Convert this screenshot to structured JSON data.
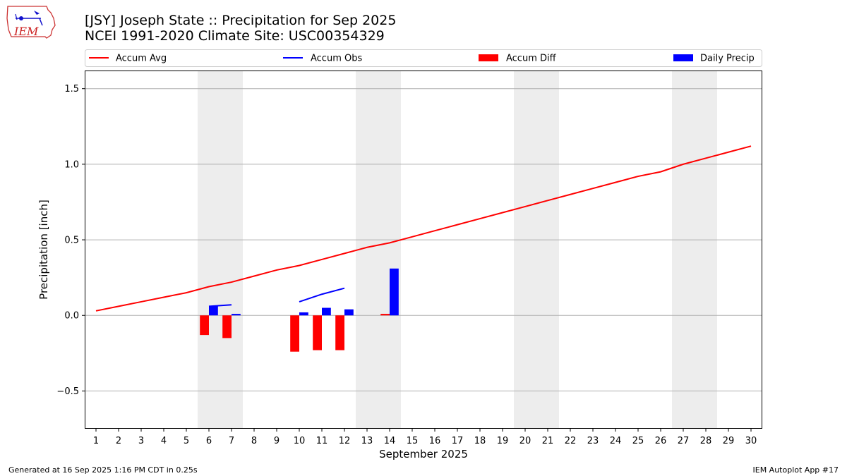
{
  "title_line1": "[JSY] Joseph State :: Precipitation for Sep 2025",
  "title_line2": "NCEI 1991-2020 Climate Site: USC00354329",
  "logo_text": "IEM",
  "footer_left": "Generated at 16 Sep 2025 1:16 PM CDT in 0.25s",
  "footer_right": "IEM Autoplot App #17",
  "colors": {
    "avg": "#ff0000",
    "obs": "#0000ff",
    "diff": "#ff0000",
    "daily": "#0000ff",
    "weekend": "#ededed"
  },
  "chart_data": {
    "type": "bar",
    "xlabel": "September 2025",
    "ylabel": "Precipitation [inch]",
    "xlim": [
      0.5,
      30.5
    ],
    "ylim": [
      -0.75,
      1.62
    ],
    "yticks": [
      -0.5,
      0.0,
      0.5,
      1.0,
      1.5
    ],
    "ytick_labels": [
      "−0.5",
      "0.0",
      "0.5",
      "1.0",
      "1.5"
    ],
    "xticks": [
      1,
      2,
      3,
      4,
      5,
      6,
      7,
      8,
      9,
      10,
      11,
      12,
      13,
      14,
      15,
      16,
      17,
      18,
      19,
      20,
      21,
      22,
      23,
      24,
      25,
      26,
      27,
      28,
      29,
      30
    ],
    "xtick_labels": [
      "1",
      "2",
      "3",
      "4",
      "5",
      "6",
      "7",
      "8",
      "9",
      "10",
      "11",
      "12",
      "13",
      "14",
      "15",
      "16",
      "17",
      "18",
      "19",
      "20",
      "21",
      "22",
      "23",
      "24",
      "25",
      "26",
      "27",
      "28",
      "29",
      "30"
    ],
    "grid": "y",
    "legend_position": "top",
    "weekend_spans": [
      [
        5.5,
        7.5
      ],
      [
        12.5,
        14.5
      ],
      [
        19.5,
        21.5
      ],
      [
        26.5,
        28.5
      ]
    ],
    "series": [
      {
        "name": "Accum Avg",
        "kind": "line",
        "x": [
          1,
          2,
          3,
          4,
          5,
          6,
          7,
          8,
          9,
          10,
          11,
          12,
          13,
          14,
          15,
          16,
          17,
          18,
          19,
          20,
          21,
          22,
          23,
          24,
          25,
          26,
          27,
          28,
          29,
          30
        ],
        "values": [
          0.03,
          0.06,
          0.09,
          0.12,
          0.15,
          0.19,
          0.22,
          0.26,
          0.3,
          0.33,
          0.37,
          0.41,
          0.45,
          0.48,
          0.52,
          0.56,
          0.6,
          0.64,
          0.68,
          0.72,
          0.76,
          0.8,
          0.84,
          0.88,
          0.92,
          0.95,
          1.0,
          1.04,
          1.08,
          1.12
        ]
      },
      {
        "name": "Accum Obs",
        "kind": "line",
        "segments": [
          {
            "x": [
              6,
              7
            ],
            "values": [
              0.06,
              0.07
            ]
          },
          {
            "x": [
              10,
              11,
              12
            ],
            "values": [
              0.09,
              0.14,
              0.18
            ]
          }
        ]
      },
      {
        "name": "Accum Diff",
        "kind": "bar",
        "x": [
          6,
          7,
          10,
          11,
          12,
          14
        ],
        "values": [
          -0.13,
          -0.15,
          -0.24,
          -0.23,
          -0.23,
          0.01
        ]
      },
      {
        "name": "Daily Precip",
        "kind": "bar",
        "x": [
          6,
          7,
          10,
          11,
          12,
          14
        ],
        "values": [
          0.06,
          0.01,
          0.02,
          0.05,
          0.04,
          0.31
        ]
      }
    ]
  }
}
